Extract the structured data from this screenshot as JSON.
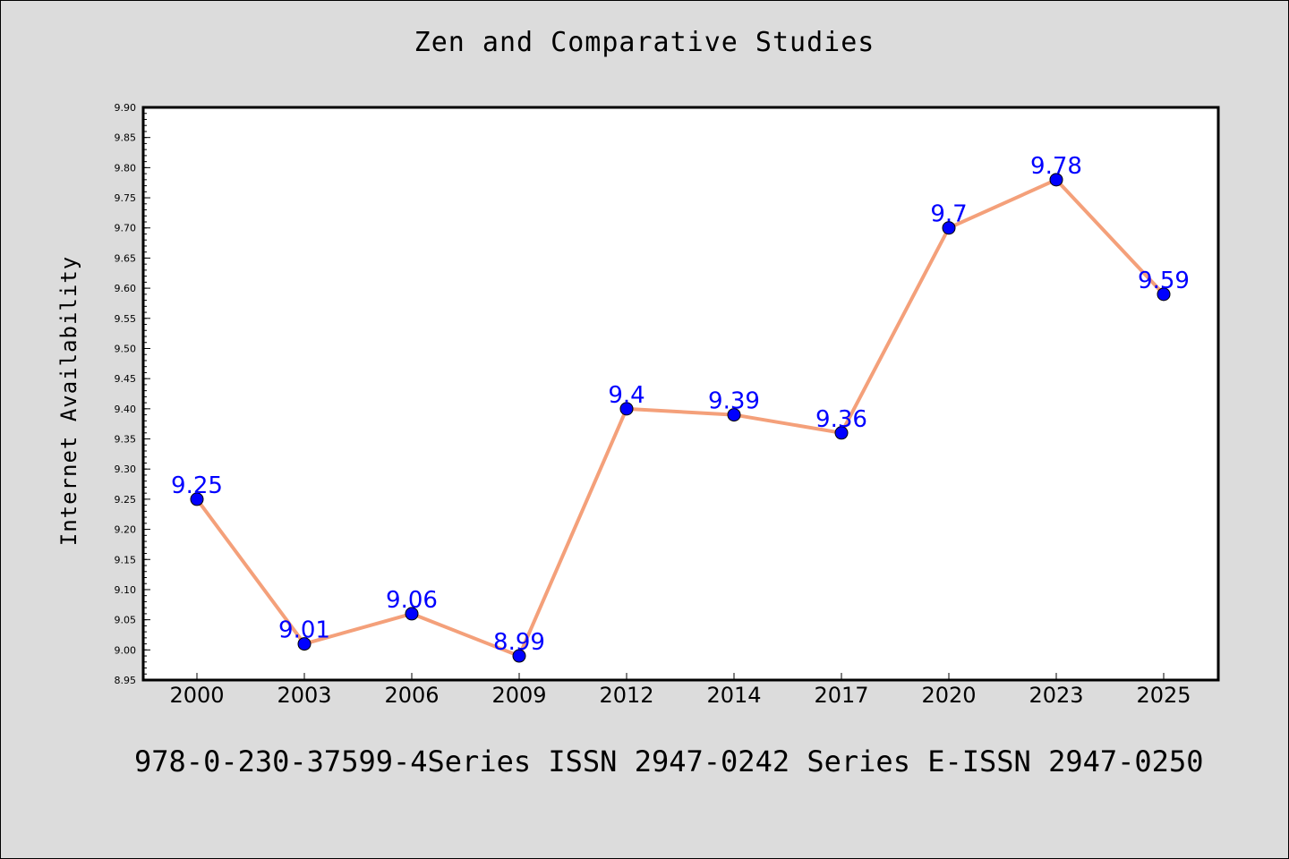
{
  "chart_data": {
    "type": "line",
    "title": "Zen and Comparative Studies",
    "xlabel": "",
    "ylabel": "Internet Availability",
    "categories": [
      "2000",
      "2003",
      "2006",
      "2009",
      "2012",
      "2014",
      "2017",
      "2020",
      "2023",
      "2025"
    ],
    "series": [
      {
        "values": [
          9.25,
          9.01,
          9.06,
          8.99,
          9.4,
          9.39,
          9.36,
          9.7,
          9.78,
          9.59
        ],
        "labels": [
          "9.25",
          "9.01",
          "9.06",
          "8.99",
          "9.4",
          "9.39",
          "9.36",
          "9.7",
          "9.78",
          "9.59"
        ],
        "line_color": "#f4a07a",
        "marker_color": "#0000ff"
      }
    ],
    "ylim": [
      8.95,
      9.9
    ],
    "yticks": [
      "8.95",
      "9.00",
      "9.05",
      "9.10",
      "9.15",
      "9.20",
      "9.25",
      "9.30",
      "9.35",
      "9.40",
      "9.45",
      "9.50",
      "9.55",
      "9.60",
      "9.65",
      "9.70",
      "9.75",
      "9.80",
      "9.85",
      "9.90"
    ],
    "grid": false,
    "legend": "none",
    "label_color": "#0000ff",
    "background": "#dcdcdc",
    "plot_background": "#ffffff"
  },
  "footer": "978-0-230-37599-4Series ISSN 2947-0242 Series E-ISSN 2947-0250"
}
